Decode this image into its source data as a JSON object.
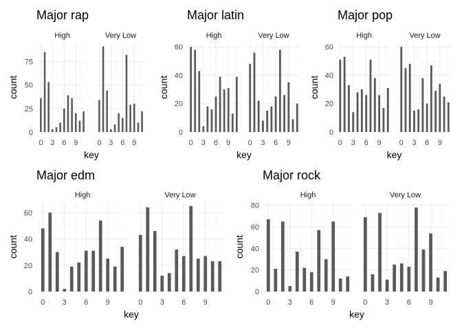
{
  "chart_data": [
    {
      "type": "bar",
      "title": "Major rap",
      "xlabel": "key",
      "ylabel": "count",
      "ylim": [
        0,
        95
      ],
      "yticks": [
        0,
        25,
        50,
        75
      ],
      "xticks": [
        0,
        3,
        6,
        9
      ],
      "categories": [
        0,
        1,
        2,
        3,
        4,
        5,
        6,
        7,
        8,
        9,
        10,
        11
      ],
      "facets": [
        {
          "name": "High",
          "values": [
            36,
            85,
            53,
            3,
            5,
            10,
            25,
            39,
            36,
            20,
            12,
            22
          ]
        },
        {
          "name": "Very Low",
          "values": [
            34,
            91,
            44,
            3,
            8,
            20,
            15,
            82,
            29,
            30,
            10,
            22
          ]
        }
      ]
    },
    {
      "type": "bar",
      "title": "Major latin",
      "xlabel": "key",
      "ylabel": "count",
      "ylim": [
        0,
        63
      ],
      "yticks": [
        0,
        20,
        40,
        60
      ],
      "xticks": [
        0,
        3,
        6,
        9
      ],
      "categories": [
        0,
        1,
        2,
        3,
        4,
        5,
        6,
        7,
        8,
        9,
        10,
        11
      ],
      "facets": [
        {
          "name": "High",
          "values": [
            60,
            58,
            43,
            4,
            18,
            16,
            25,
            39,
            30,
            31,
            13,
            39
          ]
        },
        {
          "name": "Very Low",
          "values": [
            48,
            56,
            22,
            8,
            15,
            18,
            25,
            58,
            26,
            35,
            9,
            20
          ]
        }
      ]
    },
    {
      "type": "bar",
      "title": "Major pop",
      "xlabel": "key",
      "ylabel": "count",
      "ylim": [
        0,
        63
      ],
      "yticks": [
        0,
        20,
        40,
        60
      ],
      "xticks": [
        0,
        3,
        6,
        9
      ],
      "categories": [
        0,
        1,
        2,
        3,
        4,
        5,
        6,
        7,
        8,
        9,
        10,
        11
      ],
      "facets": [
        {
          "name": "High",
          "values": [
            51,
            53,
            33,
            14,
            28,
            30,
            26,
            51,
            38,
            26,
            17,
            31
          ]
        },
        {
          "name": "Very Low",
          "values": [
            60,
            45,
            48,
            15,
            16,
            38,
            20,
            47,
            29,
            34,
            25,
            21
          ]
        }
      ]
    },
    {
      "type": "bar",
      "title": "Major edm",
      "xlabel": "key",
      "ylabel": "count",
      "ylim": [
        0,
        68
      ],
      "yticks": [
        0,
        20,
        40,
        60
      ],
      "xticks": [
        0,
        3,
        6,
        9
      ],
      "categories": [
        0,
        1,
        2,
        3,
        4,
        5,
        6,
        7,
        8,
        9,
        10,
        11
      ],
      "facets": [
        {
          "name": "High",
          "values": [
            48,
            60,
            30,
            2,
            19,
            22,
            31,
            31,
            54,
            25,
            19,
            34
          ]
        },
        {
          "name": "Very Low",
          "values": [
            43,
            64,
            46,
            12,
            14,
            32,
            27,
            65,
            25,
            27,
            23,
            23
          ]
        }
      ]
    },
    {
      "type": "bar",
      "title": "Major rock",
      "xlabel": "key",
      "ylabel": "count",
      "ylim": [
        0,
        83
      ],
      "yticks": [
        0,
        20,
        40,
        60,
        80
      ],
      "xticks": [
        0,
        3,
        6,
        9
      ],
      "categories": [
        0,
        1,
        2,
        3,
        4,
        5,
        6,
        7,
        8,
        9,
        10,
        11
      ],
      "facets": [
        {
          "name": "High",
          "values": [
            67,
            21,
            65,
            5,
            37,
            22,
            18,
            57,
            30,
            65,
            12,
            14
          ]
        },
        {
          "name": "Very Low",
          "values": [
            69,
            16,
            73,
            11,
            25,
            26,
            23,
            78,
            39,
            54,
            13,
            19
          ]
        }
      ]
    }
  ]
}
